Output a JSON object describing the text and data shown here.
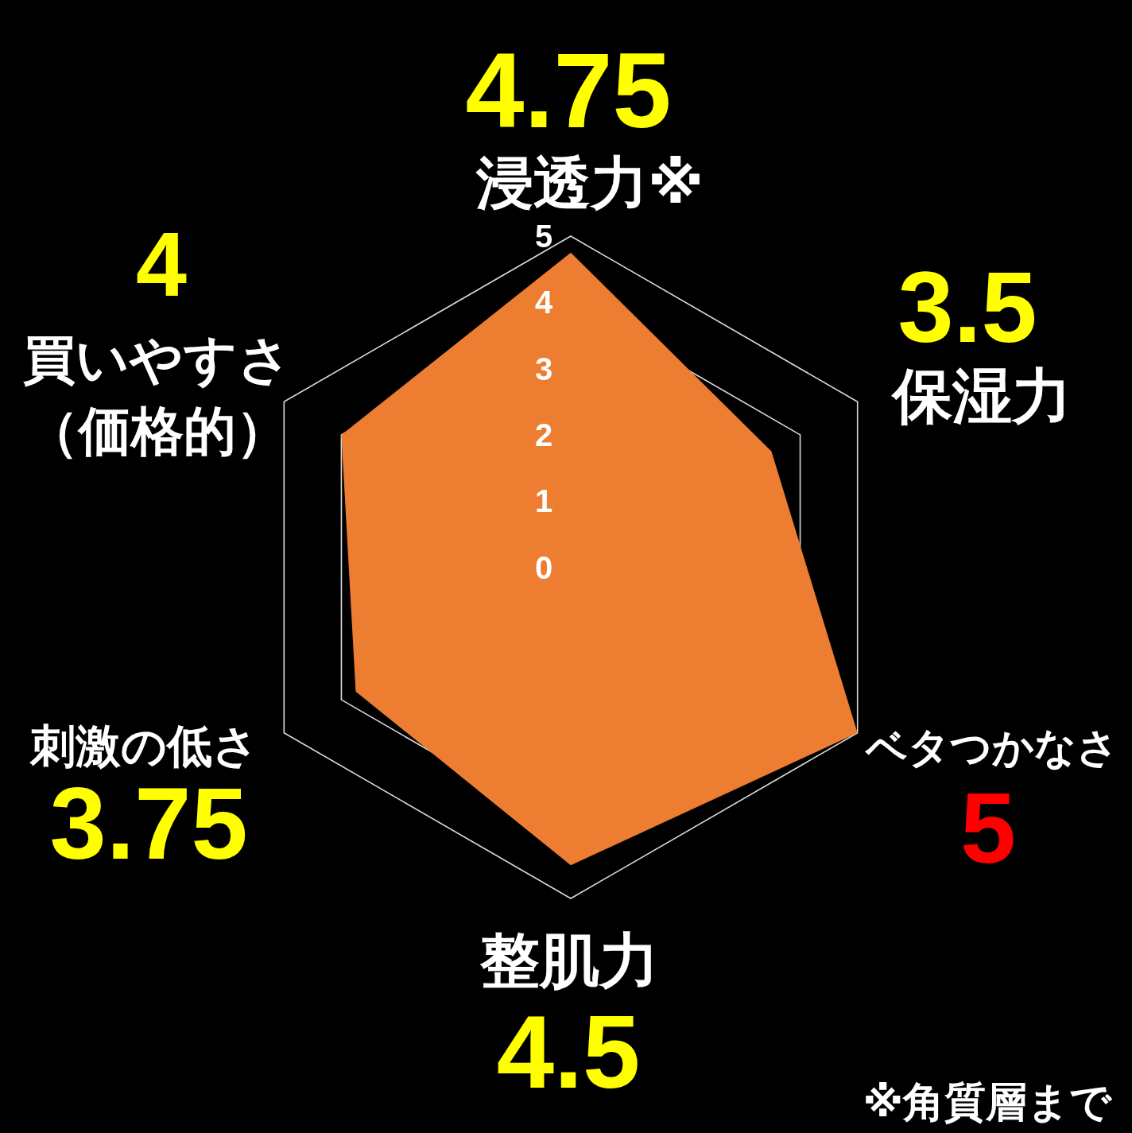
{
  "chart_data": {
    "type": "radar",
    "categories": [
      "浸透力※",
      "保湿力",
      "ベタつかなさ",
      "整肌力",
      "刺激の低さ",
      "買いやすさ（価格的）"
    ],
    "series": [
      {
        "color": "#ed7d31",
        "values": [
          4.75,
          3.5,
          5,
          4.5,
          3.75,
          4
        ]
      }
    ],
    "ylim": [
      0,
      5
    ],
    "yticks": [
      0,
      1,
      2,
      3,
      4,
      5
    ],
    "grid": true,
    "data_labels": true,
    "annotations": [
      "※角質層まで"
    ]
  }
}
